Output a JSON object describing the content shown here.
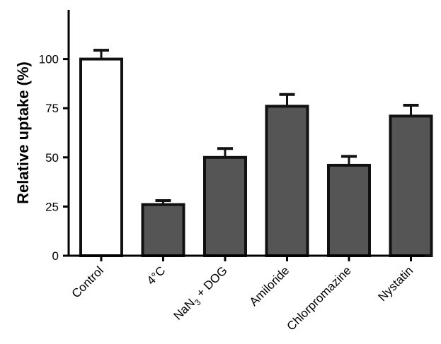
{
  "chart_data": {
    "type": "bar",
    "title": "",
    "xlabel": "",
    "ylabel": "Relative uptake (%)",
    "ylim": [
      0,
      125
    ],
    "yticks": [
      0,
      25,
      50,
      75,
      100
    ],
    "grid": false,
    "categories": [
      {
        "name": "Control",
        "label": "Control"
      },
      {
        "name": "4c",
        "label": "4°C"
      },
      {
        "name": "nan3-dog",
        "label": "NaN3 + DOG",
        "label_parts": [
          "NaN",
          "3",
          " + DOG"
        ]
      },
      {
        "name": "amiloride",
        "label": "Amiloride"
      },
      {
        "name": "chlorpromazine",
        "label": "Chlorpromazine"
      },
      {
        "name": "nystatin",
        "label": "Nystatin"
      }
    ],
    "values": [
      100,
      26,
      50,
      76,
      46,
      71
    ],
    "errors": [
      4.5,
      2,
      4.5,
      6,
      4.5,
      5.5
    ],
    "colors": [
      "#ffffff",
      "#555555",
      "#555555",
      "#555555",
      "#555555",
      "#555555"
    ],
    "edge_color": "#111111"
  }
}
